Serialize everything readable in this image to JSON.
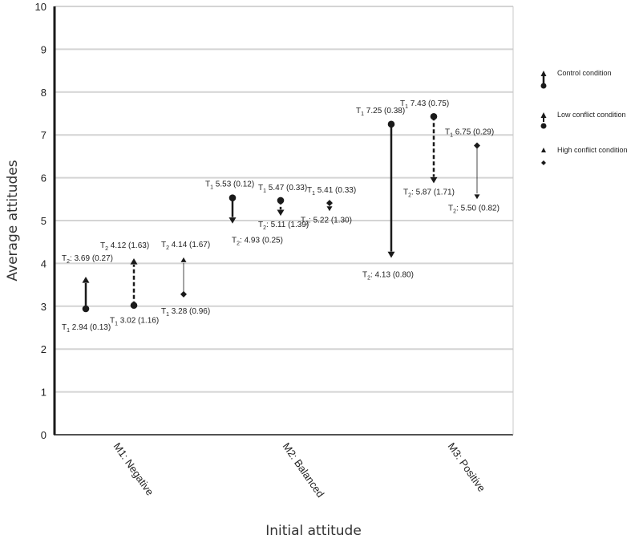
{
  "chart_data": {
    "type": "scatter",
    "title": "",
    "xlabel": "Initial attitude",
    "ylabel": "Average attitudes",
    "ylim": [
      0,
      10
    ],
    "yticks": [
      0,
      1,
      2,
      3,
      4,
      5,
      6,
      7,
      8,
      9,
      10
    ],
    "grid": true,
    "legend_position": "right",
    "categories": [
      "M1: Negative",
      "M2: Balanced",
      "M3: Positive"
    ],
    "series": [
      {
        "name": "Control condition",
        "style": "solid-thick",
        "points": [
          {
            "category": "M1: Negative",
            "t1": 2.94,
            "t2": 3.69,
            "t1_label": "T1 2.94 (0.13)",
            "t2_label": "T2: 3.69 (0.27)"
          },
          {
            "category": "M2: Balanced",
            "t1": 5.53,
            "t2": 4.93,
            "t1_label": "T1 5.53 (0.12)",
            "t2_label": "T2: 4.93 (0.25)"
          },
          {
            "category": "M3: Positive",
            "t1": 7.25,
            "t2": 4.13,
            "t1_label": "T1 7.25 (0.38)",
            "t2_label": "T2: 4.13 (0.80)"
          }
        ]
      },
      {
        "name": "Low conflict condition",
        "style": "dashed",
        "points": [
          {
            "category": "M1: Negative",
            "t1": 3.02,
            "t2": 4.12,
            "t1_label": "T1 3.02 (1.16)",
            "t2_label": "T2 4.12 (1.63)"
          },
          {
            "category": "M2: Balanced",
            "t1": 5.47,
            "t2": 5.11,
            "t1_label": "T1 5.47 (0.33)",
            "t2_label": "T2: 5.11 (1.39)"
          },
          {
            "category": "M3: Positive",
            "t1": 7.43,
            "t2": 5.87,
            "t1_label": "T1 7.43 (0.75)",
            "t2_label": "T2: 5.87 (1.71)"
          }
        ]
      },
      {
        "name": "High conflict condition",
        "style": "thin",
        "points": [
          {
            "category": "M1: Negative",
            "t1": 3.28,
            "t2": 4.14,
            "t1_label": "T1 3.28 (0.96)",
            "t2_label": "T2 4.14 (1.67)"
          },
          {
            "category": "M2: Balanced",
            "t1": 5.41,
            "t2": 5.22,
            "t1_label": "T1 5.41 (0.33)",
            "t2_label": "T2: 5.22 (1.30)"
          },
          {
            "category": "M3: Positive",
            "t1": 6.75,
            "t2": 5.5,
            "t1_label": "T1 6.75 (0.29)",
            "t2_label": "T2: 5.50 (0.82)"
          }
        ]
      }
    ],
    "colors": {
      "ink": "#1a1a1a",
      "grid": "#d4d4d4"
    }
  }
}
